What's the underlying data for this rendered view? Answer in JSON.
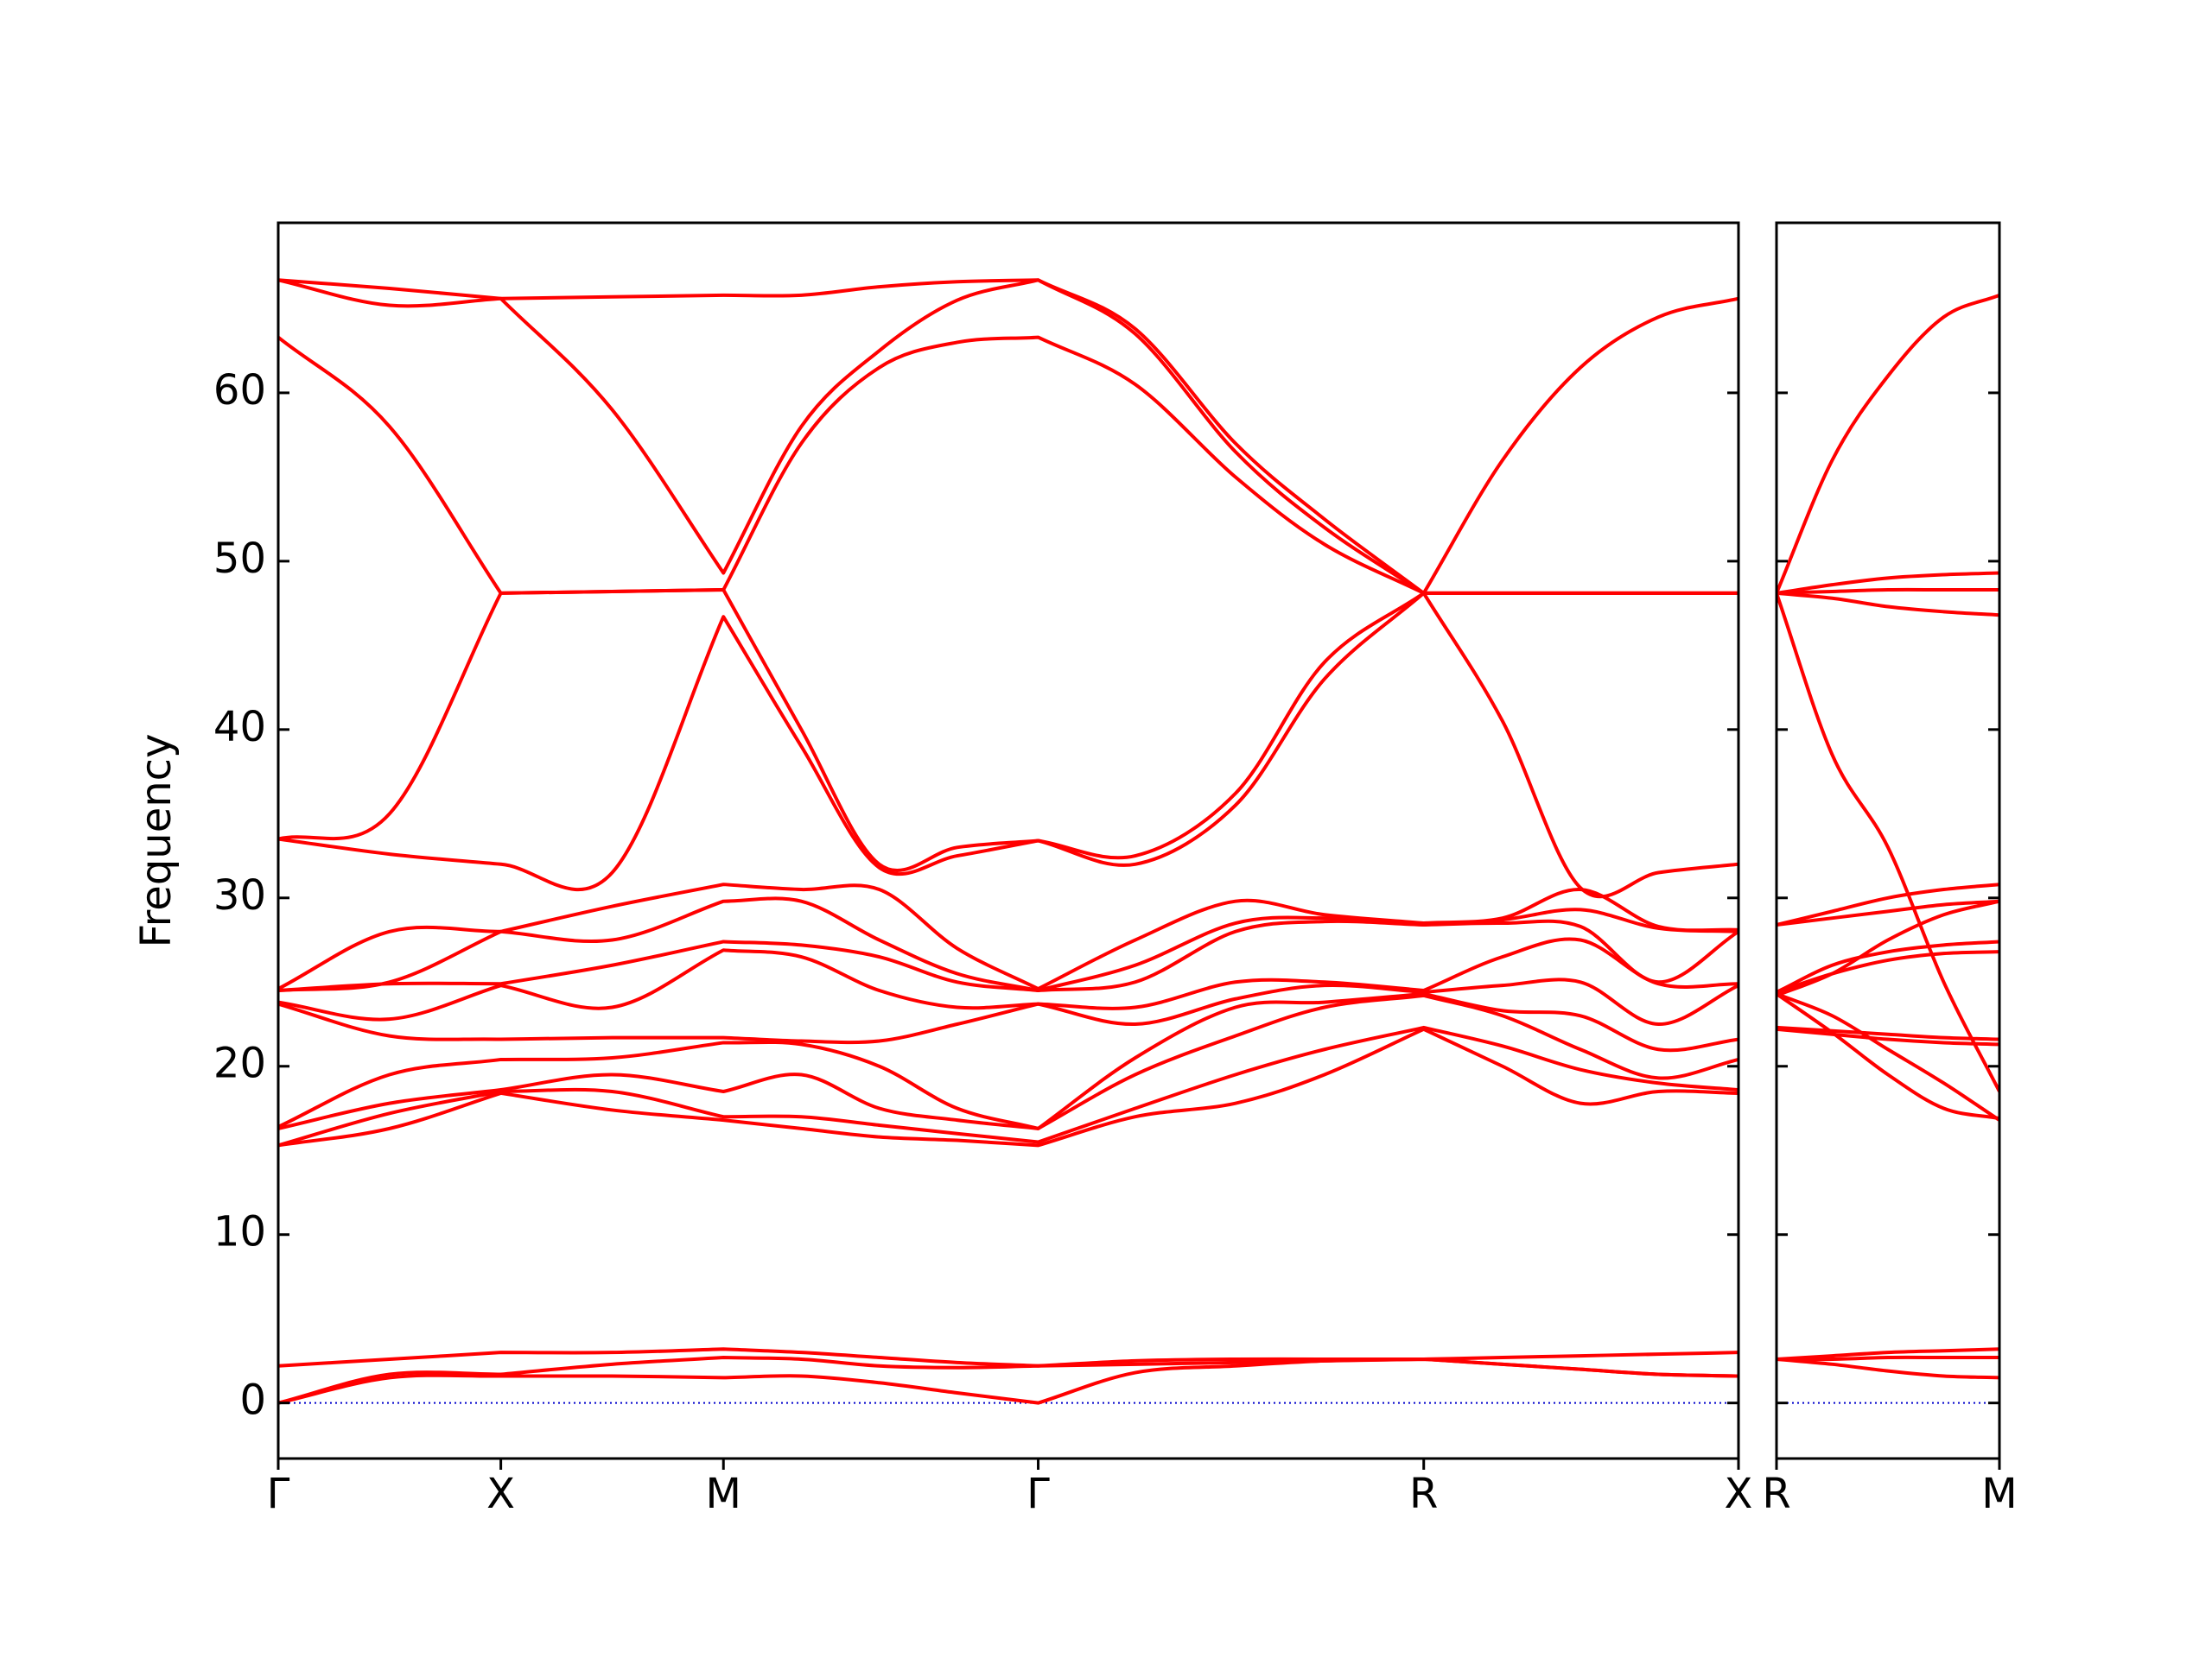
{
  "chart_data": [
    {
      "type": "line",
      "ylabel": "Frequency",
      "color": "#ff0000",
      "grid": false,
      "hline": 0,
      "hline_color": "#0000cc",
      "x": [
        0,
        0.5,
        1,
        1.5,
        2,
        2.35,
        2.7,
        3.05,
        3.414,
        3.85,
        4.3,
        4.7,
        5.146,
        5.5,
        5.85,
        6.2,
        6.56
      ],
      "xlim": [
        0,
        6.56
      ],
      "xticks": [
        {
          "value": 0,
          "label": "Γ"
        },
        {
          "value": 1,
          "label": "X"
        },
        {
          "value": 2,
          "label": "M"
        },
        {
          "value": 3.414,
          "label": "Γ"
        },
        {
          "value": 5.146,
          "label": "R"
        },
        {
          "value": 6.56,
          "label": "X"
        }
      ],
      "ylim": [
        -3.3,
        70.1
      ],
      "yticks": [
        0,
        10,
        20,
        30,
        40,
        50,
        60
      ],
      "series": [
        {
          "values": [
            0,
            1.5,
            1.6,
            1.6,
            1.5,
            1.6,
            1.2,
            0.6,
            0,
            1.8,
            2.2,
            2.5,
            2.6,
            2.3,
            2.0,
            1.7,
            1.6
          ]
        },
        {
          "values": [
            0,
            1.7,
            1.7,
            2.3,
            2.7,
            2.6,
            2.2,
            2.1,
            2.2,
            2.3,
            2.4,
            2.5,
            2.6,
            2.3,
            2.0,
            1.7,
            1.6
          ]
        },
        {
          "values": [
            2.2,
            2.6,
            3.0,
            3.0,
            3.2,
            3.0,
            2.7,
            2.4,
            2.2,
            2.5,
            2.6,
            2.6,
            2.6,
            2.7,
            2.8,
            2.9,
            3.0
          ]
        },
        {
          "values": [
            15.3,
            16.3,
            18.4,
            17.4,
            16.8,
            16.3,
            15.8,
            15.6,
            15.3,
            17.0,
            17.8,
            19.5,
            22.2,
            20.0,
            17.8,
            18.5,
            18.4
          ]
        },
        {
          "values": [
            15.3,
            17.2,
            18.5,
            18.5,
            17.0,
            17.0,
            16.5,
            16.0,
            15.5,
            17.5,
            19.5,
            21.0,
            22.3,
            21.2,
            19.8,
            19.0,
            18.6
          ]
        },
        {
          "values": [
            16.3,
            17.8,
            18.6,
            19.5,
            18.5,
            19.5,
            17.5,
            16.8,
            16.3,
            19.5,
            21.8,
            23.5,
            24.2,
            23.0,
            21.0,
            19.3,
            20.4
          ]
        },
        {
          "values": [
            16.4,
            19.5,
            20.4,
            20.5,
            21.4,
            21.3,
            20.0,
            17.5,
            16.3,
            20.5,
            23.5,
            23.8,
            24.3,
            23.3,
            23.0,
            21.0,
            21.6
          ]
        },
        {
          "values": [
            23.7,
            21.8,
            21.6,
            21.7,
            21.7,
            21.5,
            21.5,
            22.5,
            23.7,
            22.5,
            24.0,
            24.8,
            24.4,
            24.8,
            25.0,
            22.5,
            24.8
          ]
        },
        {
          "values": [
            23.8,
            22.8,
            24.8,
            23.5,
            26.9,
            26.5,
            24.5,
            23.5,
            23.7,
            23.5,
            25.0,
            25.0,
            24.5,
            26.5,
            27.5,
            24.9,
            24.9
          ]
        },
        {
          "values": [
            24.5,
            24.9,
            24.9,
            26.0,
            27.4,
            27.2,
            26.5,
            25.0,
            24.5,
            25.0,
            28.0,
            28.6,
            28.4,
            28.5,
            28.3,
            25.0,
            28.0
          ]
        },
        {
          "values": [
            24.5,
            25.0,
            28.0,
            27.5,
            29.8,
            29.8,
            27.5,
            25.5,
            24.5,
            26.0,
            28.5,
            28.8,
            28.4,
            28.7,
            29.3,
            28.2,
            28.0
          ]
        },
        {
          "values": [
            24.6,
            28.0,
            28.0,
            29.5,
            30.8,
            30.5,
            30.5,
            27.0,
            24.6,
            27.5,
            29.8,
            29.0,
            28.5,
            28.8,
            30.5,
            28.3,
            28.1
          ]
        },
        {
          "values": [
            33.5,
            32.6,
            32.0,
            31.5,
            46.7,
            39.0,
            31.8,
            32.5,
            33.4,
            32.0,
            35.5,
            43.0,
            48.1,
            40.5,
            30.6,
            31.5,
            32.0
          ]
        },
        {
          "values": [
            33.5,
            35.0,
            48.1,
            48.2,
            48.3,
            40.0,
            32.0,
            33.0,
            33.4,
            32.5,
            36.2,
            44.0,
            48.1,
            48.1,
            48.1,
            48.1,
            48.1
          ]
        },
        {
          "values": [
            63.3,
            58.0,
            48.1,
            48.2,
            48.3,
            57.0,
            61.5,
            63.0,
            63.3,
            60.5,
            55.0,
            51.0,
            48.1,
            48.1,
            48.1,
            48.1,
            48.1
          ]
        },
        {
          "values": [
            66.7,
            65.2,
            65.6,
            59.0,
            49.3,
            58.0,
            62.5,
            65.5,
            66.7,
            63.5,
            56.5,
            52.0,
            48.1,
            48.1,
            48.1,
            48.1,
            48.1
          ]
        },
        {
          "values": [
            66.7,
            66.2,
            65.6,
            65.7,
            65.8,
            65.8,
            66.3,
            66.6,
            66.7,
            63.8,
            57.0,
            52.5,
            48.1,
            56.0,
            61.5,
            64.5,
            65.6
          ]
        }
      ]
    },
    {
      "type": "line",
      "color": "#ff0000",
      "grid": false,
      "hline": 0,
      "hline_color": "#0000cc",
      "x": [
        0,
        0.25,
        0.5,
        0.75,
        1
      ],
      "xlim": [
        0,
        1
      ],
      "xticks": [
        {
          "value": 0,
          "label": "R"
        },
        {
          "value": 1,
          "label": "M"
        }
      ],
      "ylim": [
        -3.3,
        70.1
      ],
      "yticks": [
        0,
        10,
        20,
        30,
        40,
        50,
        60
      ],
      "series": [
        {
          "values": [
            2.6,
            2.3,
            1.9,
            1.6,
            1.5
          ]
        },
        {
          "values": [
            2.6,
            2.6,
            2.7,
            2.7,
            2.7
          ]
        },
        {
          "values": [
            2.6,
            2.8,
            3.0,
            3.1,
            3.2
          ]
        },
        {
          "values": [
            48.1,
            38.5,
            33.0,
            25.0,
            18.5
          ]
        },
        {
          "values": [
            48.1,
            56.0,
            61.0,
            64.5,
            65.8
          ]
        },
        {
          "values": [
            48.1,
            47.8,
            47.3,
            47.0,
            46.8
          ]
        },
        {
          "values": [
            48.1,
            48.2,
            48.3,
            48.3,
            48.3
          ]
        },
        {
          "values": [
            48.1,
            48.6,
            49.0,
            49.2,
            49.3
          ]
        },
        {
          "values": [
            28.4,
            29.2,
            30.0,
            30.5,
            30.8
          ]
        },
        {
          "values": [
            28.4,
            28.8,
            29.2,
            29.6,
            29.8
          ]
        },
        {
          "values": [
            24.4,
            25.5,
            26.3,
            26.7,
            26.8
          ]
        },
        {
          "values": [
            24.4,
            26.0,
            26.8,
            27.2,
            27.4
          ]
        },
        {
          "values": [
            24.2,
            25.5,
            27.5,
            29.0,
            29.8
          ]
        },
        {
          "values": [
            24.3,
            23.0,
            21.0,
            19.0,
            16.8
          ]
        },
        {
          "values": [
            24.3,
            22.0,
            19.5,
            17.5,
            16.9
          ]
        },
        {
          "values": [
            22.3,
            22.1,
            21.9,
            21.7,
            21.6
          ]
        },
        {
          "values": [
            22.2,
            21.9,
            21.6,
            21.4,
            21.3
          ]
        }
      ]
    }
  ]
}
